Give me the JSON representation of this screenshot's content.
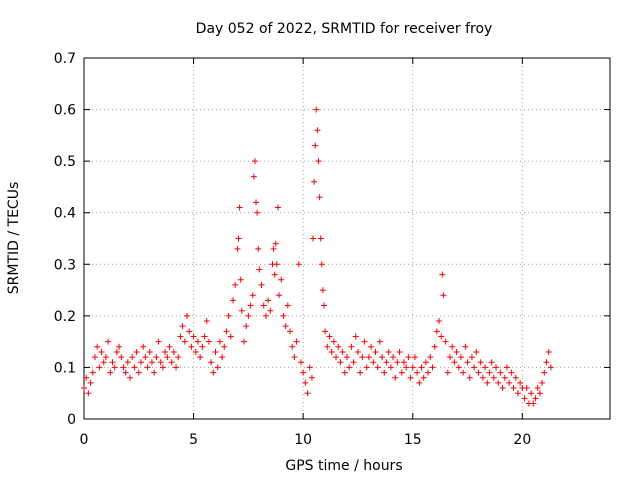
{
  "chart_data": {
    "type": "scatter",
    "title": "Day 052 of 2022, SRMTID for receiver froy",
    "xlabel": "GPS time / hours",
    "ylabel": "SRMTID / TECUs",
    "xlim": [
      0,
      24
    ],
    "ylim": [
      0,
      0.7
    ],
    "xticks": [
      0,
      5,
      10,
      15,
      20
    ],
    "yticks": [
      0,
      0.1,
      0.2,
      0.3,
      0.4,
      0.5,
      0.6,
      0.7
    ],
    "grid": true,
    "marker": "+",
    "series": [
      {
        "name": "SRMTID",
        "color": "#ff0000",
        "points": [
          [
            0.0,
            0.06
          ],
          [
            0.1,
            0.08
          ],
          [
            0.2,
            0.05
          ],
          [
            0.3,
            0.07
          ],
          [
            0.4,
            0.09
          ],
          [
            0.5,
            0.12
          ],
          [
            0.6,
            0.14
          ],
          [
            0.7,
            0.1
          ],
          [
            0.8,
            0.13
          ],
          [
            0.9,
            0.11
          ],
          [
            1.0,
            0.12
          ],
          [
            1.1,
            0.15
          ],
          [
            1.2,
            0.09
          ],
          [
            1.3,
            0.11
          ],
          [
            1.4,
            0.1
          ],
          [
            1.5,
            0.13
          ],
          [
            1.6,
            0.14
          ],
          [
            1.7,
            0.12
          ],
          [
            1.8,
            0.1
          ],
          [
            1.9,
            0.09
          ],
          [
            2.0,
            0.11
          ],
          [
            2.1,
            0.08
          ],
          [
            2.2,
            0.12
          ],
          [
            2.3,
            0.1
          ],
          [
            2.4,
            0.13
          ],
          [
            2.5,
            0.09
          ],
          [
            2.6,
            0.11
          ],
          [
            2.7,
            0.14
          ],
          [
            2.8,
            0.12
          ],
          [
            2.9,
            0.1
          ],
          [
            3.0,
            0.13
          ],
          [
            3.1,
            0.11
          ],
          [
            3.2,
            0.09
          ],
          [
            3.3,
            0.12
          ],
          [
            3.4,
            0.15
          ],
          [
            3.5,
            0.11
          ],
          [
            3.6,
            0.1
          ],
          [
            3.7,
            0.13
          ],
          [
            3.8,
            0.12
          ],
          [
            3.9,
            0.14
          ],
          [
            4.0,
            0.11
          ],
          [
            4.1,
            0.13
          ],
          [
            4.2,
            0.1
          ],
          [
            4.3,
            0.12
          ],
          [
            4.4,
            0.16
          ],
          [
            4.5,
            0.18
          ],
          [
            4.6,
            0.15
          ],
          [
            4.7,
            0.2
          ],
          [
            4.8,
            0.17
          ],
          [
            4.9,
            0.14
          ],
          [
            5.0,
            0.16
          ],
          [
            5.1,
            0.13
          ],
          [
            5.2,
            0.15
          ],
          [
            5.3,
            0.12
          ],
          [
            5.4,
            0.14
          ],
          [
            5.5,
            0.16
          ],
          [
            5.6,
            0.19
          ],
          [
            5.7,
            0.15
          ],
          [
            5.8,
            0.11
          ],
          [
            5.9,
            0.09
          ],
          [
            6.0,
            0.13
          ],
          [
            6.1,
            0.1
          ],
          [
            6.2,
            0.15
          ],
          [
            6.3,
            0.12
          ],
          [
            6.4,
            0.14
          ],
          [
            6.5,
            0.17
          ],
          [
            6.6,
            0.2
          ],
          [
            6.7,
            0.16
          ],
          [
            6.8,
            0.23
          ],
          [
            6.9,
            0.26
          ],
          [
            7.0,
            0.33
          ],
          [
            7.05,
            0.35
          ],
          [
            7.1,
            0.41
          ],
          [
            7.15,
            0.27
          ],
          [
            7.2,
            0.21
          ],
          [
            7.3,
            0.15
          ],
          [
            7.4,
            0.18
          ],
          [
            7.5,
            0.2
          ],
          [
            7.6,
            0.22
          ],
          [
            7.7,
            0.24
          ],
          [
            7.75,
            0.47
          ],
          [
            7.8,
            0.5
          ],
          [
            7.85,
            0.42
          ],
          [
            7.9,
            0.4
          ],
          [
            7.95,
            0.33
          ],
          [
            8.0,
            0.29
          ],
          [
            8.1,
            0.26
          ],
          [
            8.2,
            0.22
          ],
          [
            8.3,
            0.2
          ],
          [
            8.4,
            0.23
          ],
          [
            8.5,
            0.21
          ],
          [
            8.6,
            0.3
          ],
          [
            8.65,
            0.33
          ],
          [
            8.7,
            0.28
          ],
          [
            8.75,
            0.34
          ],
          [
            8.8,
            0.3
          ],
          [
            8.85,
            0.41
          ],
          [
            8.9,
            0.24
          ],
          [
            9.0,
            0.27
          ],
          [
            9.1,
            0.2
          ],
          [
            9.2,
            0.18
          ],
          [
            9.3,
            0.22
          ],
          [
            9.4,
            0.17
          ],
          [
            9.5,
            0.14
          ],
          [
            9.6,
            0.12
          ],
          [
            9.7,
            0.15
          ],
          [
            9.8,
            0.3
          ],
          [
            9.9,
            0.11
          ],
          [
            10.0,
            0.09
          ],
          [
            10.1,
            0.07
          ],
          [
            10.2,
            0.05
          ],
          [
            10.3,
            0.1
          ],
          [
            10.4,
            0.08
          ],
          [
            10.45,
            0.35
          ],
          [
            10.5,
            0.46
          ],
          [
            10.55,
            0.53
          ],
          [
            10.6,
            0.6
          ],
          [
            10.65,
            0.56
          ],
          [
            10.7,
            0.5
          ],
          [
            10.75,
            0.43
          ],
          [
            10.8,
            0.35
          ],
          [
            10.85,
            0.3
          ],
          [
            10.9,
            0.25
          ],
          [
            10.95,
            0.22
          ],
          [
            11.0,
            0.17
          ],
          [
            11.1,
            0.14
          ],
          [
            11.2,
            0.16
          ],
          [
            11.3,
            0.13
          ],
          [
            11.4,
            0.15
          ],
          [
            11.5,
            0.12
          ],
          [
            11.6,
            0.14
          ],
          [
            11.7,
            0.11
          ],
          [
            11.8,
            0.13
          ],
          [
            11.9,
            0.09
          ],
          [
            12.0,
            0.12
          ],
          [
            12.1,
            0.1
          ],
          [
            12.2,
            0.14
          ],
          [
            12.3,
            0.11
          ],
          [
            12.4,
            0.16
          ],
          [
            12.5,
            0.13
          ],
          [
            12.6,
            0.09
          ],
          [
            12.7,
            0.12
          ],
          [
            12.8,
            0.15
          ],
          [
            12.9,
            0.1
          ],
          [
            13.0,
            0.12
          ],
          [
            13.1,
            0.14
          ],
          [
            13.2,
            0.11
          ],
          [
            13.3,
            0.13
          ],
          [
            13.4,
            0.1
          ],
          [
            13.5,
            0.15
          ],
          [
            13.6,
            0.12
          ],
          [
            13.7,
            0.09
          ],
          [
            13.8,
            0.11
          ],
          [
            13.9,
            0.13
          ],
          [
            14.0,
            0.1
          ],
          [
            14.1,
            0.12
          ],
          [
            14.2,
            0.08
          ],
          [
            14.3,
            0.11
          ],
          [
            14.4,
            0.13
          ],
          [
            14.5,
            0.09
          ],
          [
            14.6,
            0.11
          ],
          [
            14.7,
            0.1
          ],
          [
            14.8,
            0.12
          ],
          [
            14.9,
            0.08
          ],
          [
            15.0,
            0.1
          ],
          [
            15.1,
            0.12
          ],
          [
            15.2,
            0.09
          ],
          [
            15.3,
            0.07
          ],
          [
            15.4,
            0.1
          ],
          [
            15.5,
            0.08
          ],
          [
            15.6,
            0.11
          ],
          [
            15.7,
            0.09
          ],
          [
            15.8,
            0.12
          ],
          [
            15.9,
            0.1
          ],
          [
            16.0,
            0.14
          ],
          [
            16.1,
            0.17
          ],
          [
            16.2,
            0.19
          ],
          [
            16.3,
            0.16
          ],
          [
            16.35,
            0.28
          ],
          [
            16.4,
            0.24
          ],
          [
            16.5,
            0.15
          ],
          [
            16.6,
            0.09
          ],
          [
            16.7,
            0.12
          ],
          [
            16.8,
            0.14
          ],
          [
            16.9,
            0.11
          ],
          [
            17.0,
            0.13
          ],
          [
            17.1,
            0.1
          ],
          [
            17.2,
            0.12
          ],
          [
            17.3,
            0.09
          ],
          [
            17.4,
            0.14
          ],
          [
            17.5,
            0.11
          ],
          [
            17.6,
            0.08
          ],
          [
            17.7,
            0.12
          ],
          [
            17.8,
            0.1
          ],
          [
            17.9,
            0.13
          ],
          [
            18.0,
            0.09
          ],
          [
            18.1,
            0.11
          ],
          [
            18.2,
            0.08
          ],
          [
            18.3,
            0.1
          ],
          [
            18.4,
            0.07
          ],
          [
            18.5,
            0.09
          ],
          [
            18.6,
            0.11
          ],
          [
            18.7,
            0.08
          ],
          [
            18.8,
            0.1
          ],
          [
            18.9,
            0.07
          ],
          [
            19.0,
            0.09
          ],
          [
            19.1,
            0.06
          ],
          [
            19.2,
            0.08
          ],
          [
            19.3,
            0.1
          ],
          [
            19.4,
            0.07
          ],
          [
            19.5,
            0.09
          ],
          [
            19.6,
            0.06
          ],
          [
            19.7,
            0.08
          ],
          [
            19.8,
            0.05
          ],
          [
            19.9,
            0.07
          ],
          [
            20.0,
            0.06
          ],
          [
            20.1,
            0.04
          ],
          [
            20.2,
            0.06
          ],
          [
            20.3,
            0.03
          ],
          [
            20.4,
            0.05
          ],
          [
            20.5,
            0.03
          ],
          [
            20.6,
            0.04
          ],
          [
            20.7,
            0.06
          ],
          [
            20.8,
            0.05
          ],
          [
            20.9,
            0.07
          ],
          [
            21.0,
            0.09
          ],
          [
            21.1,
            0.11
          ],
          [
            21.2,
            0.13
          ],
          [
            21.3,
            0.1
          ]
        ]
      }
    ]
  }
}
